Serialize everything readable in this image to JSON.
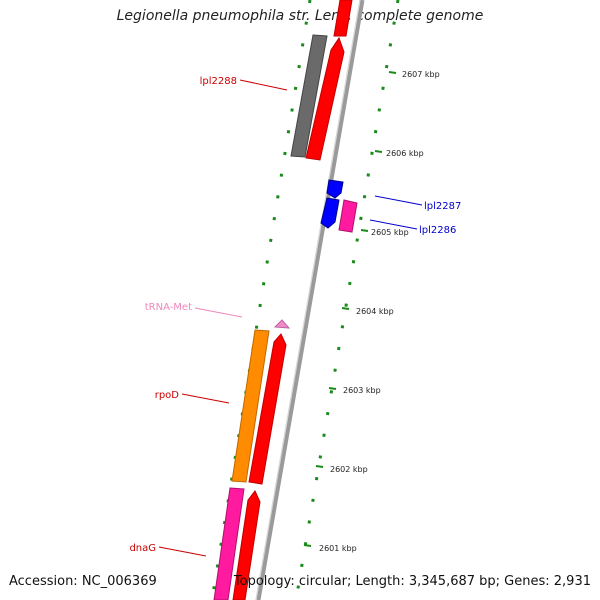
{
  "title": "Legionella pneumophila str. Lens, complete genome",
  "footer": {
    "accession": "Accession: NC_006369",
    "summary": "Topology: circular; Length: 3,345,687 bp; Genes: 2,931"
  },
  "scale_ticks": [
    {
      "label": "2607 kbp"
    },
    {
      "label": "2606 kbp"
    },
    {
      "label": "2605 kbp"
    },
    {
      "label": "2604 kbp"
    },
    {
      "label": "2603 kbp"
    },
    {
      "label": "2602 kbp"
    },
    {
      "label": "2601 kbp"
    }
  ],
  "gene_labels": {
    "lpl2288": "lpl2288",
    "lpl2287": "lpl2287",
    "lpl2286": "lpl2286",
    "trna_met": "tRNA-Met",
    "rpoD": "rpoD",
    "dnaG": "dnaG"
  },
  "colors": {
    "cds": "#ff0000",
    "gene_gray": "#666666",
    "gene_blue": "#0000ff",
    "gene_pink": "#ff1aa0",
    "trna": "#f08ac8",
    "orange": "#ff8c00",
    "gc_dots": "#1a8a1a",
    "backbone": "#999999",
    "label_red": "#cc0000",
    "label_blue": "#0000cc",
    "label_pink": "#ee88bb"
  }
}
